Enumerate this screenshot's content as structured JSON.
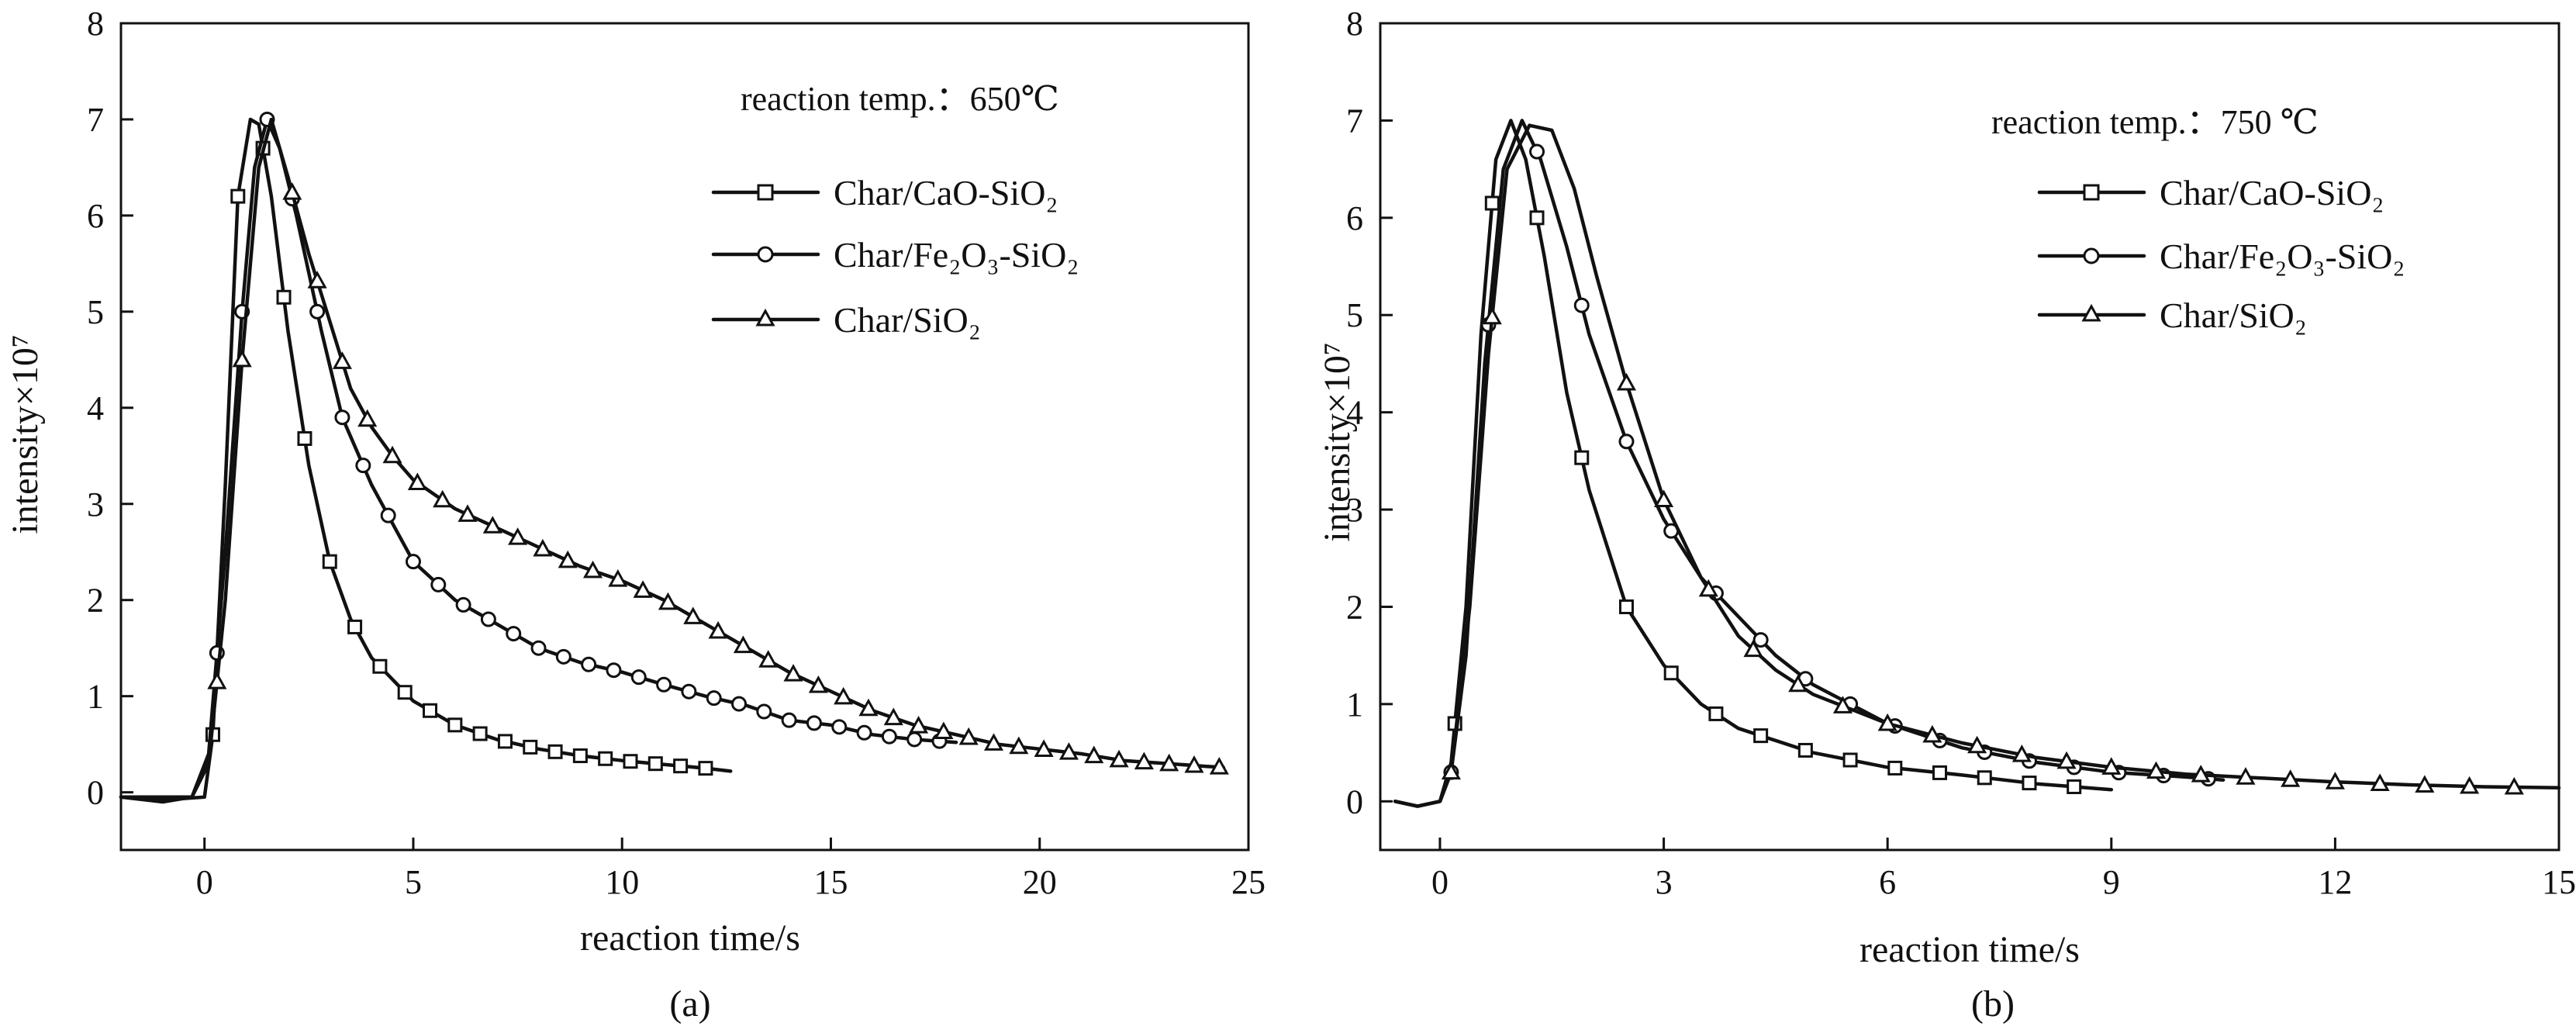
{
  "chart_data": [
    {
      "type": "line",
      "panel_label": "(a)",
      "annotation": "reaction temp.：650℃",
      "xlabel": "reaction time/s",
      "ylabel": "intensity×10⁷",
      "xlim": [
        -2,
        25
      ],
      "ylim": [
        -0.6,
        8
      ],
      "xticks": [
        0,
        5,
        10,
        15,
        20,
        25
      ],
      "yticks": [
        0,
        1,
        2,
        3,
        4,
        5,
        6,
        7,
        8
      ],
      "legend_position": "top-right",
      "series": [
        {
          "name": "Char/CaO-SiO₂",
          "marker": "square",
          "points": [
            [
              -2,
              -0.05
            ],
            [
              -1,
              -0.08
            ],
            [
              0,
              -0.05
            ],
            [
              0.2,
              0.6
            ],
            [
              0.5,
              3.2
            ],
            [
              0.8,
              6.2
            ],
            [
              1.1,
              7.0
            ],
            [
              1.3,
              6.95
            ],
            [
              1.6,
              6.2
            ],
            [
              2,
              4.8
            ],
            [
              2.5,
              3.4
            ],
            [
              3,
              2.4
            ],
            [
              3.5,
              1.8
            ],
            [
              4,
              1.4
            ],
            [
              5,
              0.95
            ],
            [
              6,
              0.7
            ],
            [
              7,
              0.55
            ],
            [
              8,
              0.45
            ],
            [
              9,
              0.38
            ],
            [
              10,
              0.33
            ],
            [
              11,
              0.29
            ],
            [
              12,
              0.25
            ],
            [
              12.6,
              0.22
            ]
          ],
          "marker_x": [
            0.2,
            0.8,
            1.4,
            1.9,
            2.4,
            3.0,
            3.6,
            4.2,
            4.8,
            5.4,
            6.0,
            6.6,
            7.2,
            7.8,
            8.4,
            9.0,
            9.6,
            10.2,
            10.8,
            11.4,
            12.0
          ]
        },
        {
          "name": "Char/Fe₂O₃-SiO₂",
          "marker": "circle",
          "points": [
            [
              -2,
              -0.05
            ],
            [
              -1,
              -0.1
            ],
            [
              -0.3,
              -0.05
            ],
            [
              0.1,
              0.4
            ],
            [
              0.5,
              2.5
            ],
            [
              0.9,
              5.0
            ],
            [
              1.2,
              6.5
            ],
            [
              1.5,
              7.0
            ],
            [
              1.8,
              6.7
            ],
            [
              2.2,
              6.0
            ],
            [
              2.8,
              4.8
            ],
            [
              3.3,
              3.9
            ],
            [
              4,
              3.2
            ],
            [
              4.5,
              2.8
            ],
            [
              5,
              2.4
            ],
            [
              5.5,
              2.2
            ],
            [
              6,
              2.0
            ],
            [
              7,
              1.75
            ],
            [
              8,
              1.5
            ],
            [
              9,
              1.35
            ],
            [
              10,
              1.25
            ],
            [
              11,
              1.12
            ],
            [
              12,
              1.0
            ],
            [
              13,
              0.9
            ],
            [
              14,
              0.75
            ],
            [
              15,
              0.7
            ],
            [
              16,
              0.6
            ],
            [
              17,
              0.55
            ],
            [
              18,
              0.52
            ]
          ],
          "marker_x": [
            0.3,
            0.9,
            1.5,
            2.1,
            2.7,
            3.3,
            3.8,
            4.4,
            5.0,
            5.6,
            6.2,
            6.8,
            7.4,
            8.0,
            8.6,
            9.2,
            9.8,
            10.4,
            11.0,
            11.6,
            12.2,
            12.8,
            13.4,
            14.0,
            14.6,
            15.2,
            15.8,
            16.4,
            17.0,
            17.6
          ]
        },
        {
          "name": "Char/SiO₂",
          "marker": "triangle",
          "points": [
            [
              -2,
              -0.05
            ],
            [
              -1,
              -0.05
            ],
            [
              -0.3,
              -0.05
            ],
            [
              0.1,
              0.3
            ],
            [
              0.5,
              2.0
            ],
            [
              0.9,
              4.5
            ],
            [
              1.3,
              6.5
            ],
            [
              1.6,
              7.0
            ],
            [
              2.0,
              6.4
            ],
            [
              2.5,
              5.6
            ],
            [
              3,
              4.9
            ],
            [
              3.5,
              4.2
            ],
            [
              4,
              3.8
            ],
            [
              4.5,
              3.5
            ],
            [
              5,
              3.25
            ],
            [
              6,
              2.95
            ],
            [
              7,
              2.75
            ],
            [
              8,
              2.55
            ],
            [
              9,
              2.35
            ],
            [
              10,
              2.2
            ],
            [
              11,
              2.0
            ],
            [
              12,
              1.75
            ],
            [
              13,
              1.5
            ],
            [
              14,
              1.25
            ],
            [
              15,
              1.05
            ],
            [
              16,
              0.85
            ],
            [
              17,
              0.7
            ],
            [
              18,
              0.6
            ],
            [
              19,
              0.5
            ],
            [
              20,
              0.45
            ],
            [
              21,
              0.4
            ],
            [
              22,
              0.33
            ],
            [
              23,
              0.3
            ],
            [
              24,
              0.27
            ],
            [
              24.4,
              0.26
            ]
          ],
          "marker_x": [
            0.3,
            0.9,
            2.1,
            2.7,
            3.3,
            3.9,
            4.5,
            5.1,
            5.7,
            6.3,
            6.9,
            7.5,
            8.1,
            8.7,
            9.3,
            9.9,
            10.5,
            11.1,
            11.7,
            12.3,
            12.9,
            13.5,
            14.1,
            14.7,
            15.3,
            15.9,
            16.5,
            17.1,
            17.7,
            18.3,
            18.9,
            19.5,
            20.1,
            20.7,
            21.3,
            21.9,
            22.5,
            23.1,
            23.7,
            24.3
          ]
        }
      ]
    },
    {
      "type": "line",
      "panel_label": "(b)",
      "annotation": "reaction temp.：750 ℃",
      "xlabel": "reaction time/s",
      "ylabel": "intensity×10⁷",
      "xlim": [
        -0.8,
        15
      ],
      "ylim": [
        -0.5,
        8
      ],
      "xticks": [
        0,
        3,
        6,
        9,
        12,
        15
      ],
      "yticks": [
        0,
        1,
        2,
        3,
        4,
        5,
        6,
        7,
        8
      ],
      "legend_position": "top-right",
      "series": [
        {
          "name": "Char/CaO-SiO₂",
          "marker": "square",
          "points": [
            [
              -0.6,
              0
            ],
            [
              -0.3,
              -0.05
            ],
            [
              0,
              0
            ],
            [
              0.15,
              0.4
            ],
            [
              0.35,
              2.0
            ],
            [
              0.55,
              4.8
            ],
            [
              0.75,
              6.6
            ],
            [
              0.95,
              7.0
            ],
            [
              1.15,
              6.6
            ],
            [
              1.4,
              5.6
            ],
            [
              1.7,
              4.2
            ],
            [
              2.0,
              3.2
            ],
            [
              2.5,
              2.0
            ],
            [
              3,
              1.4
            ],
            [
              3.5,
              1.0
            ],
            [
              4,
              0.75
            ],
            [
              5,
              0.5
            ],
            [
              6,
              0.35
            ],
            [
              7,
              0.27
            ],
            [
              8,
              0.18
            ],
            [
              9,
              0.12
            ]
          ],
          "marker_x": [
            0.2,
            0.7,
            1.3,
            1.9,
            2.5,
            3.1,
            3.7,
            4.3,
            4.9,
            5.5,
            6.1,
            6.7,
            7.3,
            7.9,
            8.5
          ]
        },
        {
          "name": "Char/Fe₂O₃-SiO₂",
          "marker": "circle",
          "points": [
            [
              -0.6,
              0
            ],
            [
              -0.3,
              -0.05
            ],
            [
              0,
              0
            ],
            [
              0.15,
              0.3
            ],
            [
              0.35,
              1.5
            ],
            [
              0.6,
              4.5
            ],
            [
              0.85,
              6.5
            ],
            [
              1.1,
              7.0
            ],
            [
              1.35,
              6.6
            ],
            [
              1.7,
              5.7
            ],
            [
              2.0,
              4.8
            ],
            [
              2.5,
              3.7
            ],
            [
              3,
              2.9
            ],
            [
              3.5,
              2.3
            ],
            [
              4,
              1.9
            ],
            [
              4.5,
              1.5
            ],
            [
              5,
              1.2
            ],
            [
              6,
              0.8
            ],
            [
              7,
              0.55
            ],
            [
              8,
              0.4
            ],
            [
              9,
              0.3
            ],
            [
              10,
              0.25
            ],
            [
              10.5,
              0.22
            ]
          ],
          "marker_x": [
            0.15,
            0.65,
            1.3,
            1.9,
            2.5,
            3.1,
            3.7,
            4.3,
            4.9,
            5.5,
            6.1,
            6.7,
            7.3,
            7.9,
            8.5,
            9.1,
            9.7,
            10.3
          ]
        },
        {
          "name": "Char/SiO₂",
          "marker": "triangle",
          "points": [
            [
              -0.6,
              0
            ],
            [
              -0.3,
              -0.05
            ],
            [
              0,
              0
            ],
            [
              0.15,
              0.3
            ],
            [
              0.4,
              2.0
            ],
            [
              0.65,
              4.6
            ],
            [
              0.9,
              6.5
            ],
            [
              1.2,
              6.95
            ],
            [
              1.5,
              6.9
            ],
            [
              1.8,
              6.3
            ],
            [
              2.1,
              5.4
            ],
            [
              2.5,
              4.3
            ],
            [
              3,
              3.1
            ],
            [
              3.5,
              2.3
            ],
            [
              4,
              1.7
            ],
            [
              4.5,
              1.35
            ],
            [
              5,
              1.1
            ],
            [
              6,
              0.8
            ],
            [
              7,
              0.6
            ],
            [
              8,
              0.45
            ],
            [
              9,
              0.35
            ],
            [
              10,
              0.28
            ],
            [
              11,
              0.24
            ],
            [
              12,
              0.2
            ],
            [
              13,
              0.17
            ],
            [
              14,
              0.15
            ],
            [
              15,
              0.14
            ]
          ],
          "marker_x": [
            0.15,
            0.7,
            2.5,
            3.0,
            3.6,
            4.2,
            4.8,
            5.4,
            6.0,
            6.6,
            7.2,
            7.8,
            8.4,
            9.0,
            9.6,
            10.2,
            10.8,
            11.4,
            12.0,
            12.6,
            13.2,
            13.8,
            14.4
          ]
        }
      ]
    }
  ]
}
